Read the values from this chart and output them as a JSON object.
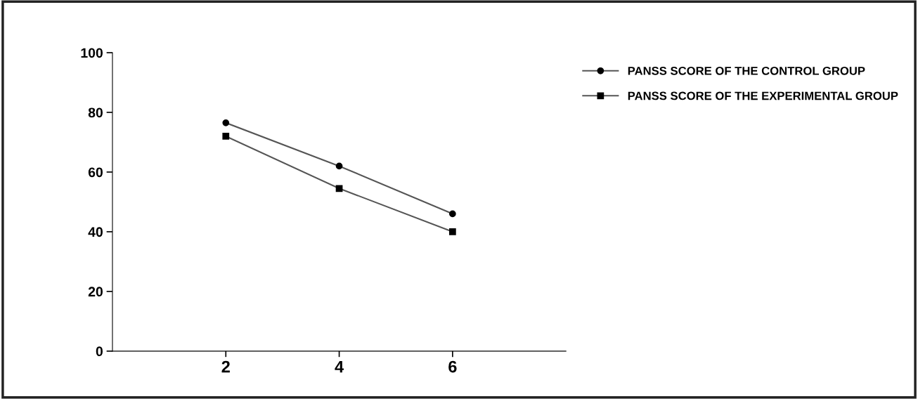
{
  "chart_data": {
    "type": "line",
    "x": [
      2,
      4,
      6
    ],
    "series": [
      {
        "name": "PANSS SCORE OF THE CONTROL GROUP",
        "color": "#555555",
        "marker": "circle",
        "values": [
          76.5,
          62,
          46
        ]
      },
      {
        "name": "PANSS SCORE OF THE EXPERIMENTAL GROUP",
        "color": "#555555",
        "marker": "square",
        "values": [
          72,
          54.5,
          40
        ]
      }
    ],
    "xlim": [
      0,
      8
    ],
    "xticks": [
      2,
      4,
      6
    ],
    "ylim": [
      0,
      100
    ],
    "yticks": [
      0,
      20,
      40,
      60,
      80,
      100
    ],
    "grid": false,
    "legend": "top right",
    "line_style": "solid"
  }
}
